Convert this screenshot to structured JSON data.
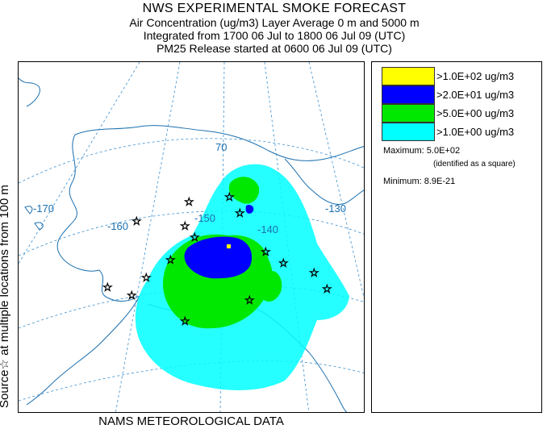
{
  "title": {
    "line1": "NWS EXPERIMENTAL SMOKE FORECAST",
    "line2": "Air Concentration (ug/m3) Layer Average    0 m and  5000 m",
    "line3": "Integrated from 1700 06 Jul to 1800 06 Jul 09 (UTC)",
    "line4": "PM25 Release started at 0600 06 Jul 09 (UTC)"
  },
  "side_label": "Source☆ at multiple locations   from   100 m",
  "footer": "NAMS METEOROLOGICAL DATA",
  "map": {
    "lon_labels": [
      "-170",
      "-160",
      "-150",
      "-140",
      "-130"
    ],
    "lat_labels": [
      "70"
    ],
    "colors": {
      "ocean": "#ffffff",
      "coast": "#1a6fb0",
      "grid": "#3a8fcf",
      "level1": "#00ffff",
      "level2": "#00e800",
      "level3": "#0000ff",
      "level4": "#ffff00"
    }
  },
  "legend": {
    "items": [
      {
        "label": ">1.0E+02 ug/m3",
        "color": "#ffff00"
      },
      {
        "label": ">2.0E+01 ug/m3",
        "color": "#0000ff"
      },
      {
        "label": ">5.0E+00 ug/m3",
        "color": "#00e800"
      },
      {
        "label": ">1.0E+00 ug/m3",
        "color": "#00ffff"
      }
    ],
    "maximum": "Maximum: 5.0E+02",
    "maximum_note": "(identified as a square)",
    "minimum": "Minimum: 8.9E-21"
  }
}
